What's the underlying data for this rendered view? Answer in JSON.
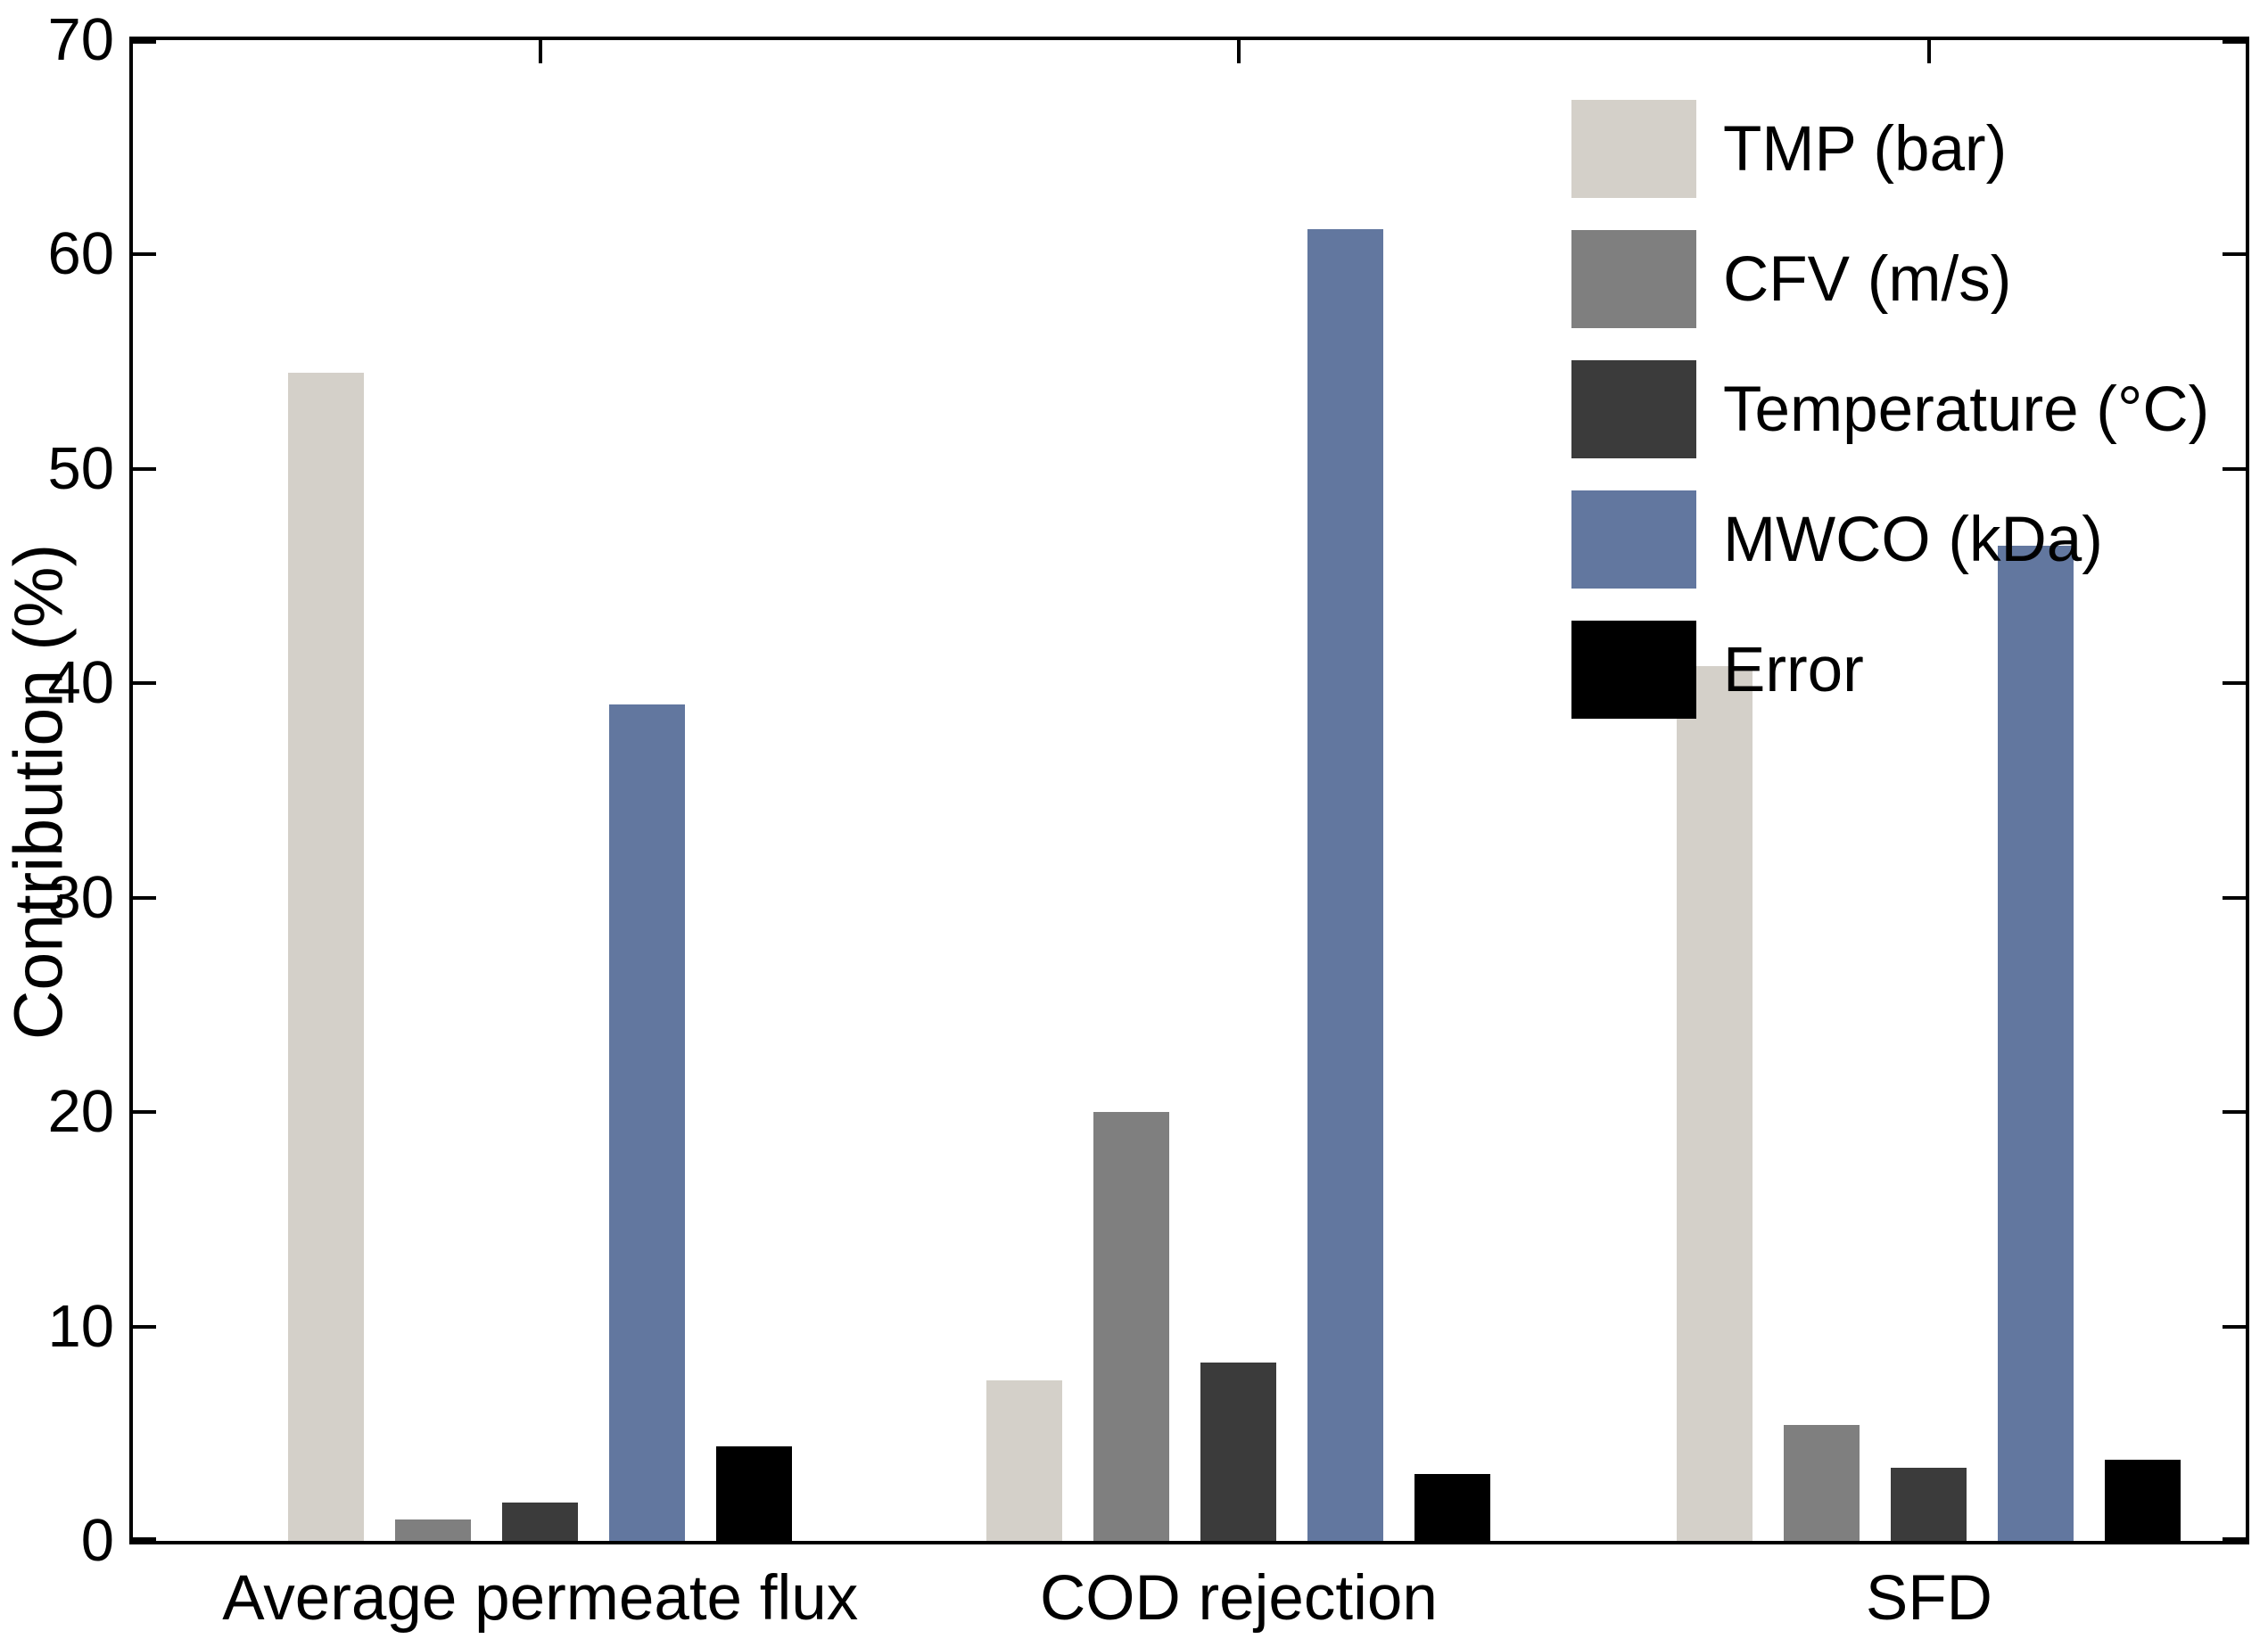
{
  "figure": {
    "background": "#ffffff",
    "axis_color": "#000000"
  },
  "chart_data": {
    "type": "bar",
    "title": "",
    "xlabel": "",
    "ylabel": "Contribution (%)",
    "ylim": [
      0,
      70
    ],
    "yticks": [
      0,
      10,
      20,
      30,
      40,
      50,
      60,
      70
    ],
    "grid": false,
    "legend_position": "top-right-inside",
    "legend_frame": false,
    "categories": [
      "Average permeate flux",
      "COD rejection",
      "SFD"
    ],
    "series": [
      {
        "name": "TMP (bar)",
        "color": "#d4d0c9",
        "values": [
          54.5,
          7.5,
          40.8
        ]
      },
      {
        "name": "CFV (m/s)",
        "color": "#7f7f7f",
        "values": [
          1.0,
          20.0,
          5.4
        ]
      },
      {
        "name": "Temperature (°C)",
        "color": "#3b3b3b",
        "values": [
          1.8,
          8.3,
          3.4
        ]
      },
      {
        "name": "MWCO (kDa)",
        "color": "#62779f",
        "values": [
          39.0,
          61.2,
          46.4
        ]
      },
      {
        "name": "Error",
        "color": "#000000",
        "values": [
          4.4,
          3.1,
          3.8
        ]
      }
    ]
  }
}
